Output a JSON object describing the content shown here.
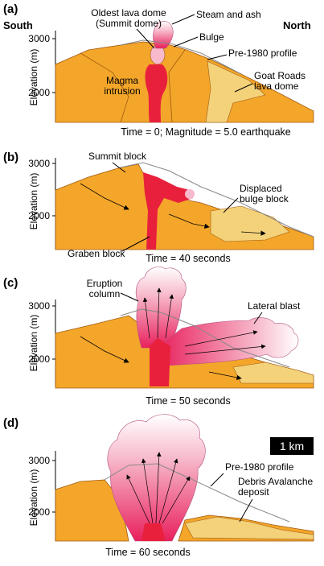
{
  "colors": {
    "crust": "#f4a62a",
    "crust_dark": "#e8901c",
    "magma": "#e8203c",
    "avalanche": "#f3d27a",
    "old_profile": "#888888",
    "plume_top": "#ffffff",
    "plume_bottom": "#e8205c"
  },
  "compass": {
    "south": "South",
    "north": "North"
  },
  "y_axis": {
    "label": "Elevation (m)",
    "ticks": [
      "3000",
      "2000"
    ]
  },
  "panels": [
    {
      "letter": "(a)",
      "caption": "Time = 0; Magnitude = 5.0 earthquake",
      "labels": {
        "summit_dome": [
          "Oldest lava dome",
          "(Summit dome)"
        ],
        "steam": "Steam and ash",
        "bulge": "Bulge",
        "profile": "Pre-1980 profile",
        "goat_rocks": [
          "Goat Roads",
          "lava dome"
        ],
        "magma": [
          "Magma",
          "intrusion"
        ]
      }
    },
    {
      "letter": "(b)",
      "caption": "Time = 40 seconds",
      "labels": {
        "summit_block": "Summit block",
        "displaced": [
          "Displaced",
          "bulge block"
        ],
        "graben": "Graben block"
      }
    },
    {
      "letter": "(c)",
      "caption": "Time = 50 seconds",
      "labels": {
        "eruption": [
          "Eruption",
          "column"
        ],
        "lateral": "Lateral blast"
      }
    },
    {
      "letter": "(d)",
      "caption": "Time = 60 seconds",
      "labels": {
        "profile": "Pre-1980 profile",
        "avalanche": [
          "Debris Avalanche",
          "deposit"
        ]
      }
    }
  ],
  "scale_bar": "1 km"
}
